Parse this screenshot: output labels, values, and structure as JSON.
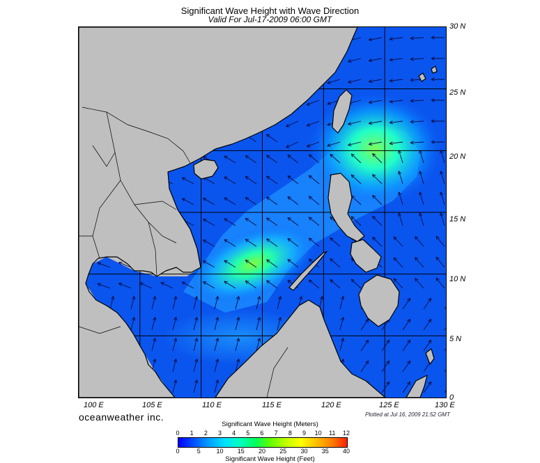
{
  "header": {
    "title": "Significant Wave Height with Wave Direction",
    "subtitle": "Valid For Jul-17-2009 06:00 GMT"
  },
  "map": {
    "lat_labels": [
      "30 N",
      "25 N",
      "20 N",
      "15 N",
      "10 N",
      "5 N",
      "0"
    ],
    "lon_labels": [
      "100 E",
      "105 E",
      "110 E",
      "115 E",
      "120 E",
      "125 E",
      "130 E"
    ],
    "lat_range": [
      0,
      30
    ],
    "lon_range": [
      100,
      130
    ],
    "grid_spacing_deg": 5,
    "land_color": "#bfbfbf",
    "coast_color": "#000000",
    "grid_color": "#000000"
  },
  "footer": {
    "brand": "oceanweather inc.",
    "plotted": "Plotted at Jul 16, 2009 21:52 GMT"
  },
  "colorbar": {
    "title_top": "Significant Wave Height (Meters)",
    "title_bottom": "Significant Wave Height (Feet)",
    "meters": [
      "0",
      "1",
      "2",
      "3",
      "4",
      "5",
      "6",
      "7",
      "8",
      "9",
      "10",
      "11",
      "12"
    ],
    "feet": [
      "0",
      "5",
      "10",
      "15",
      "20",
      "25",
      "30",
      "35",
      "40"
    ],
    "colors": [
      "#0000ff",
      "#0050ff",
      "#00a0ff",
      "#00e0ff",
      "#00ffc0",
      "#00ff60",
      "#60ff00",
      "#c0ff00",
      "#ffff00",
      "#ffc000",
      "#ff8000",
      "#ff2000"
    ]
  }
}
